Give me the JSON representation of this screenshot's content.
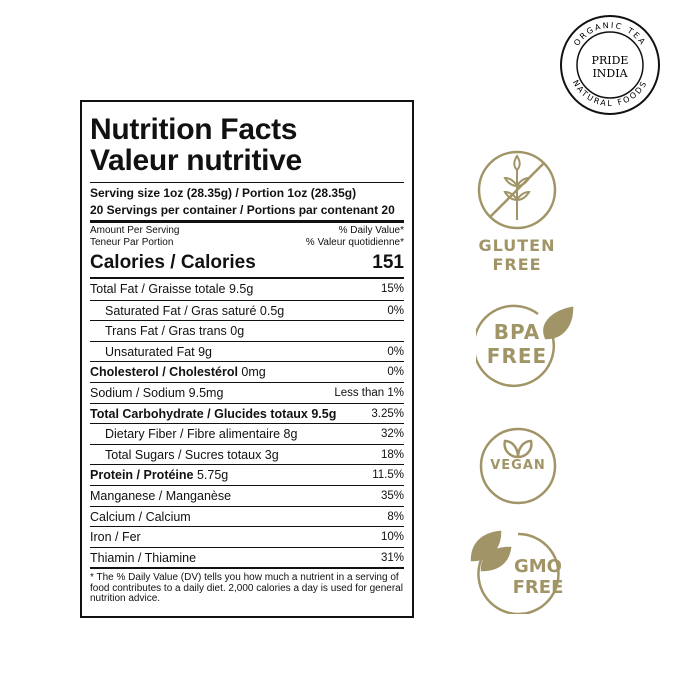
{
  "logo": {
    "text_top": "ORGANIC TEA",
    "text_center": "PRIDE INDIA",
    "text_bottom": "NATURAL FOODS"
  },
  "panel": {
    "title1": "Nutrition Facts",
    "title2": "Valeur nutritive",
    "serving": "Serving size 1oz (28.35g)  / Portion 1oz (28.35g)",
    "servings": "20 Servings per container / Portions par contenant 20",
    "amount_en": "Amount Per Serving",
    "amount_fr": "Teneur Par Portion",
    "dv_en": "% Daily Value*",
    "dv_fr": "% Valeur quotidienne*",
    "calories_label": "Calories / Calories",
    "calories_value": "151",
    "rows": [
      {
        "label": "Total Fat / Graisse totale 9.5g",
        "dv": "15%"
      },
      {
        "label": "Saturated Fat / Gras saturé 0.5g",
        "dv": "0%"
      },
      {
        "label": "Trans Fat / Gras trans 0g",
        "dv": ""
      },
      {
        "label": "Unsaturated Fat 9g",
        "dv": "0%"
      },
      {
        "label": "Cholesterol / Cholestérol",
        "amt": " 0mg",
        "dv": "0%"
      },
      {
        "label": "Sodium / Sodium 9.5mg",
        "dv": "Less than 1%"
      },
      {
        "label": "Total Carbohydrate / Glucides totaux 9.5g",
        "dv": "3.25%"
      },
      {
        "label": "Dietary Fiber / Fibre alimentaire 8g",
        "dv": "32%"
      },
      {
        "label": "Total Sugars / Sucres totaux 3g",
        "dv": "18%"
      },
      {
        "label": "Protein / Protéine",
        "amt": " 5.75g",
        "dv": "11.5%"
      },
      {
        "label": "Manganese / Manganèse",
        "dv": "35%"
      },
      {
        "label": "Calcium / Calcium",
        "dv": "8%"
      },
      {
        "label": "Iron / Fer",
        "dv": "10%"
      },
      {
        "label": "Thiamin / Thiamine",
        "dv": "31%"
      }
    ],
    "footnote": "* The % Daily Value (DV) tells you how much a nutrient in a serving of food contributes to a daily diet. 2,000 calories a day is used for general nutrition advice."
  },
  "badges": {
    "color": "#a19567",
    "gluten": [
      "GLUTEN",
      "FREE"
    ],
    "bpa": [
      "BPA",
      "FREE"
    ],
    "vegan": "VEGAN",
    "gmo": [
      "GMO",
      "FREE"
    ]
  }
}
